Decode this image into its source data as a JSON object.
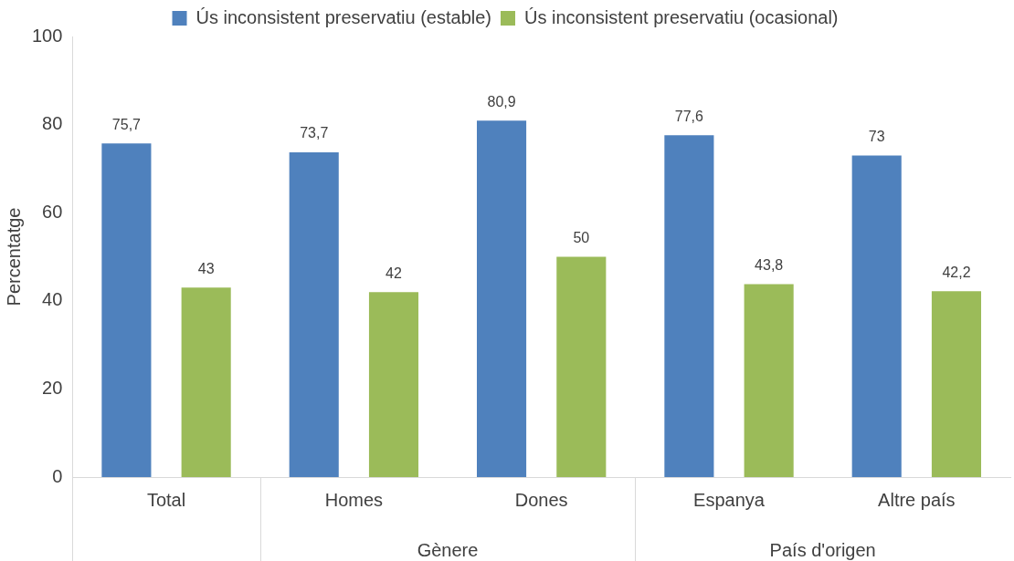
{
  "chart_data": {
    "type": "bar",
    "ylabel": "Percentatge",
    "categories": [
      "Total",
      "Homes",
      "Dones",
      "Espanya",
      "Altre país"
    ],
    "series": [
      {
        "name": "Ús inconsistent preservatiu (estable)",
        "color": "#4f81bd",
        "values": [
          75.7,
          73.7,
          80.9,
          77.6,
          73
        ],
        "value_labels": [
          "75,7",
          "73,7",
          "80,9",
          "77,6",
          "73"
        ]
      },
      {
        "name": "Ús inconsistent preservatiu (ocasional)",
        "color": "#9bbb59",
        "values": [
          43,
          42,
          50,
          43.8,
          42.2
        ],
        "value_labels": [
          "43",
          "42",
          "50",
          "43,8",
          "42,2"
        ]
      }
    ],
    "ylim": [
      0,
      100
    ],
    "yticks": [
      0,
      20,
      40,
      60,
      80,
      100
    ],
    "grid": false,
    "legend": "top",
    "annotations": [
      "Gènere",
      "País d'origen"
    ]
  }
}
